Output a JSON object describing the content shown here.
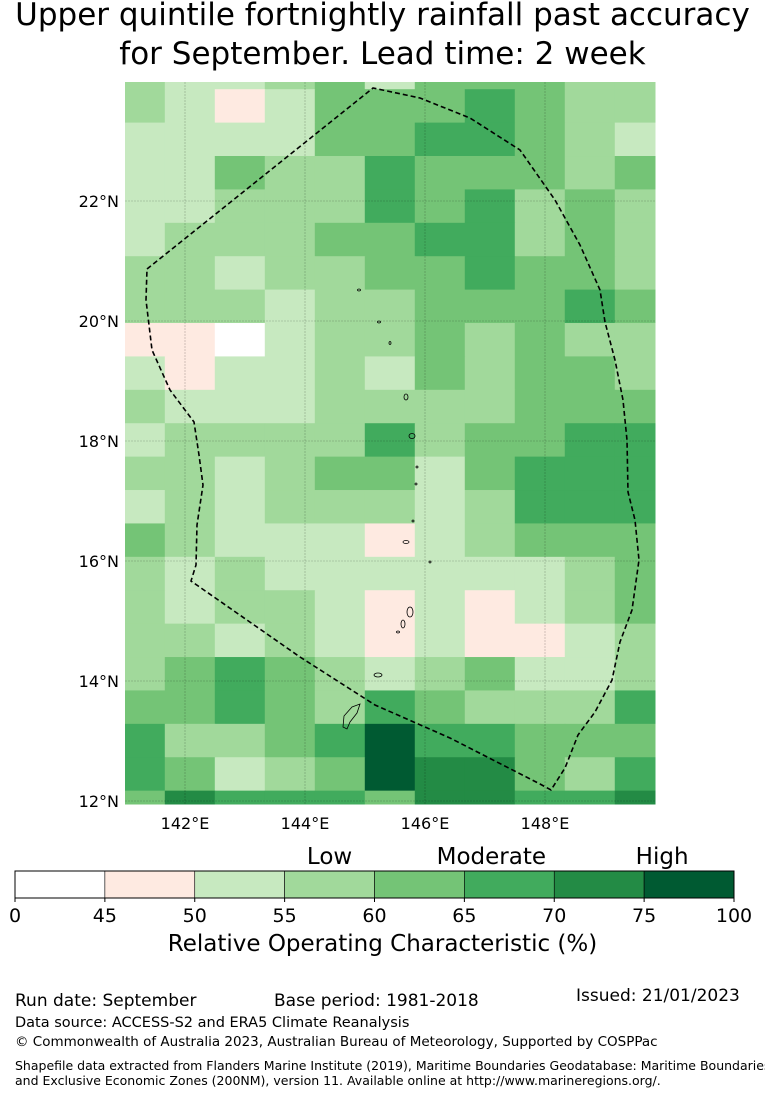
{
  "title_line1": "Upper quintile fortnightly rainfall past accuracy",
  "title_line2": "for September. Lead time: 2 week",
  "chart_data": {
    "type": "heatmap",
    "title": "Upper quintile fortnightly rainfall past accuracy for September. Lead time: 2 week",
    "extent_lon": [
      141.0,
      149.83
    ],
    "extent_lat": [
      11.95,
      23.98
    ],
    "grid_lon_start": 140.83,
    "grid_dlon": 0.8333,
    "grid_lat_top": 24.42,
    "grid_dlat": 0.5567,
    "grid_legend": "W=0-45, P=45-50, 1=50-55, 2=55-60, 3=60-65, 4=65-70, 5=70-75, 6=75-100",
    "grid": [
      "21123133322",
      "21P13334322",
      "11113344321",
      "11322433323",
      "11222434232",
      "12223344232",
      "22122334332",
      "22212233343",
      "PPW12232322",
      "1P112132332",
      "21112222333",
      "12222423344",
      "22123313444",
      "12122212444",
      "32111P12333",
      "21211111123",
      "21221P1P123",
      "22121P1PP12",
      "23432123112",
      "33432432224",
      "42234644333",
      "43123655324",
      "35444355445"
    ],
    "xticks": [
      {
        "v": 142,
        "label": "142°E"
      },
      {
        "v": 144,
        "label": "144°E"
      },
      {
        "v": 146,
        "label": "146°E"
      },
      {
        "v": 148,
        "label": "148°E"
      }
    ],
    "yticks": [
      {
        "v": 22,
        "label": "22°N"
      },
      {
        "v": 20,
        "label": "20°N"
      },
      {
        "v": 18,
        "label": "18°N"
      },
      {
        "v": 16,
        "label": "16°N"
      },
      {
        "v": 14,
        "label": "14°N"
      },
      {
        "v": 12,
        "label": "12°N"
      }
    ],
    "eez_boundary": "dashed"
  },
  "colorbar": {
    "label": "Relative Operating Characteristic (%)",
    "bounds": [
      "0",
      "45",
      "50",
      "55",
      "60",
      "65",
      "70",
      "75",
      "100"
    ],
    "colors": {
      "W": "#ffffff",
      "P": "#feeae1",
      "1": "#c7e9c0",
      "2": "#a1d99b",
      "3": "#74c476",
      "4": "#41ab5d",
      "5": "#238b45",
      "6": "#005a32"
    },
    "order": [
      "W",
      "P",
      "1",
      "2",
      "3",
      "4",
      "5",
      "6"
    ],
    "categories": [
      {
        "label": "Low",
        "at": 3.5
      },
      {
        "label": "Moderate",
        "at": 5.3
      },
      {
        "label": "High",
        "at": 7.2
      }
    ]
  },
  "footer": {
    "run_date": "Run date: September",
    "base_period": "Base period: 1981-2018",
    "issued": "Issued: 21/01/2023",
    "data_source": "Data source: ACCESS-S2 and ERA5 Climate Reanalysis",
    "copyright": "© Commonwealth of Australia 2023, Australian Bureau of Meteorology, Supported by COSPPac",
    "shapefile_1": "Shapefile data extracted from Flanders Marine Institute (2019), Maritime Boundaries Geodatabase: Maritime Boundaries",
    "shapefile_2": "and Exclusive Economic Zones (200NM), version 11. Available online at http://www.marineregions.org/."
  }
}
